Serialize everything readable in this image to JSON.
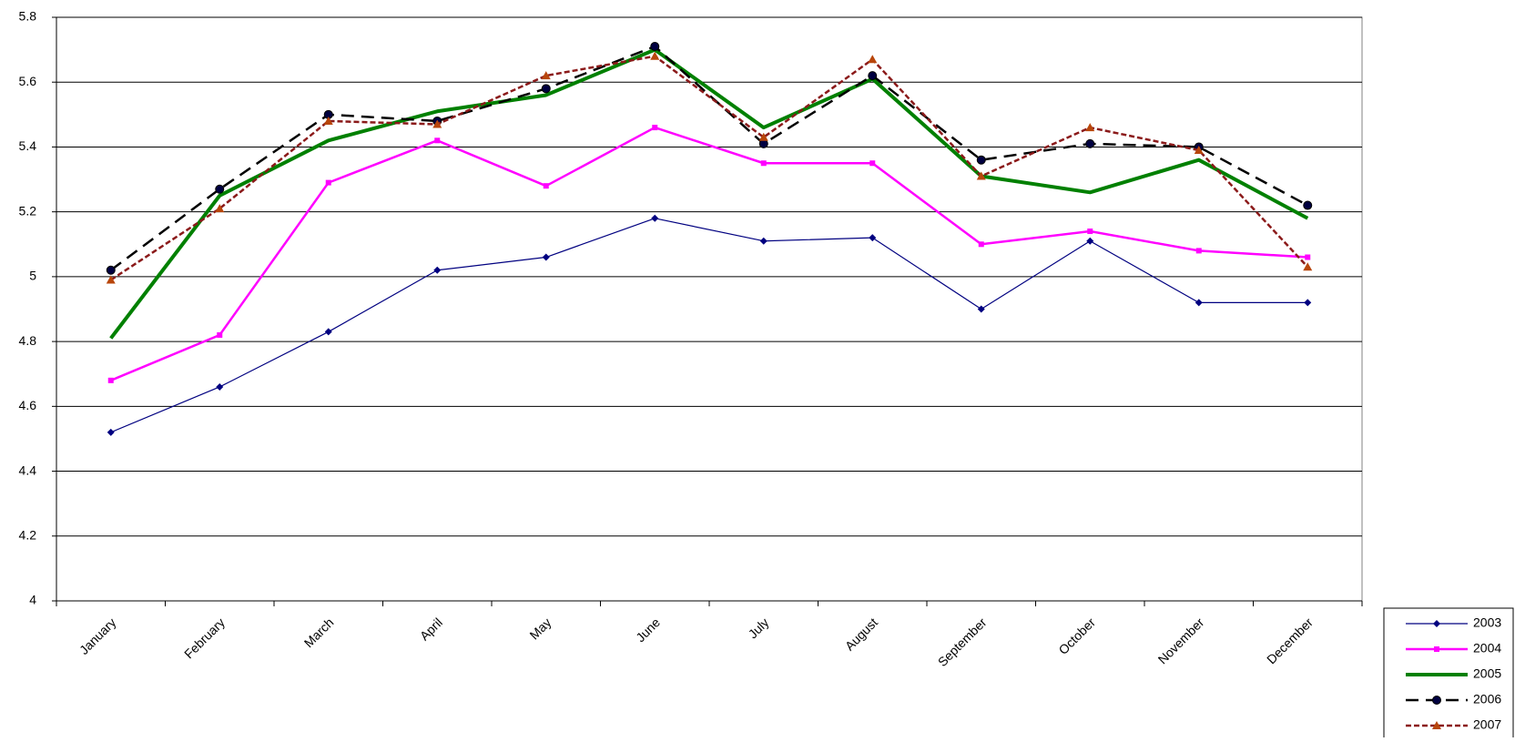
{
  "chart_data": {
    "type": "line",
    "categories": [
      "January",
      "February",
      "March",
      "April",
      "May",
      "June",
      "July",
      "August",
      "September",
      "October",
      "November",
      "December"
    ],
    "series": [
      {
        "name": "2003",
        "color": "#000080",
        "marker": "diamond",
        "dash": "none",
        "width": 1.2,
        "values": [
          4.52,
          4.66,
          4.83,
          5.02,
          5.06,
          5.18,
          5.11,
          5.12,
          4.9,
          5.11,
          4.92,
          4.92
        ]
      },
      {
        "name": "2004",
        "color": "#ff00ff",
        "marker": "square",
        "dash": "none",
        "width": 2.5,
        "values": [
          4.68,
          4.82,
          5.29,
          5.42,
          5.28,
          5.46,
          5.35,
          5.35,
          5.1,
          5.14,
          5.08,
          5.06
        ]
      },
      {
        "name": "2005",
        "color": "#008000",
        "marker": "none",
        "dash": "none",
        "width": 4,
        "values": [
          4.81,
          5.25,
          5.42,
          5.51,
          5.56,
          5.7,
          5.46,
          5.61,
          5.31,
          5.26,
          5.36,
          5.18
        ]
      },
      {
        "name": "2006",
        "color": "#000000",
        "marker": "circle",
        "dash": "14 8",
        "width": 2.5,
        "values": [
          5.02,
          5.27,
          5.5,
          5.48,
          5.58,
          5.71,
          5.41,
          5.62,
          5.36,
          5.41,
          5.4,
          5.22
        ]
      },
      {
        "name": "2007",
        "color": "#8b1a1a",
        "marker": "triangle",
        "dash": "6 3",
        "width": 2.5,
        "values": [
          4.99,
          5.21,
          5.48,
          5.47,
          5.62,
          5.68,
          5.43,
          5.67,
          5.31,
          5.46,
          5.39,
          5.03
        ]
      }
    ],
    "ylim": [
      4,
      5.8
    ],
    "yticks": [
      4,
      4.2,
      4.4,
      4.6,
      4.8,
      5,
      5.2,
      5.4,
      5.6,
      5.8
    ],
    "grid": true,
    "legend": "bottom-right"
  }
}
